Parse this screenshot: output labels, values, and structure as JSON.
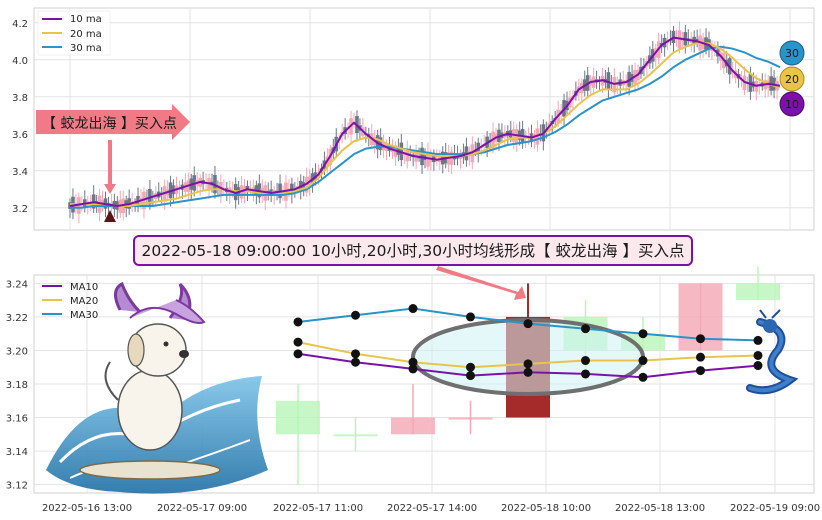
{
  "colors": {
    "ma10": "#7b12a8",
    "ma20": "#e8c44a",
    "ma30": "#2a93c8",
    "candle_up": "#f4a7b5",
    "candle_down": "#6b7788",
    "highlight_candle": "#a52a2a",
    "callout_fill": "#f07a86",
    "banner_fill": "#fbe9ee",
    "banner_border": "#7b12a8"
  },
  "callout": {
    "buy_label": "【 蛟龙出海 】买入点"
  },
  "banner": {
    "text": "2022-05-18 09:00:00 10小时,20小时,30小时均线形成【 蛟龙出海 】买入点"
  },
  "badges": {
    "ma30": "30",
    "ma20": "20",
    "ma10": "10"
  },
  "chart_data": [
    {
      "type": "candlestick",
      "legend": [
        "10 ma",
        "20 ma",
        "30 ma"
      ],
      "legend_position": "top-left",
      "ylim": [
        3.08,
        4.28
      ],
      "yticks": [
        "3.2",
        "3.4",
        "3.6",
        "3.8",
        "4.0",
        "4.2"
      ],
      "grid": true,
      "ma10": [
        3.21,
        3.22,
        3.23,
        3.22,
        3.21,
        3.22,
        3.24,
        3.26,
        3.28,
        3.3,
        3.32,
        3.34,
        3.33,
        3.3,
        3.28,
        3.3,
        3.29,
        3.28,
        3.29,
        3.3,
        3.33,
        3.38,
        3.48,
        3.6,
        3.66,
        3.6,
        3.55,
        3.52,
        3.5,
        3.48,
        3.47,
        3.46,
        3.47,
        3.48,
        3.5,
        3.54,
        3.58,
        3.6,
        3.59,
        3.58,
        3.6,
        3.68,
        3.75,
        3.84,
        3.88,
        3.89,
        3.87,
        3.88,
        3.92,
        4.0,
        4.08,
        4.12,
        4.11,
        4.1,
        4.08,
        4.02,
        3.94,
        3.88,
        3.86,
        3.87,
        3.86
      ],
      "ma20": [
        3.22,
        3.22,
        3.22,
        3.22,
        3.21,
        3.21,
        3.22,
        3.23,
        3.24,
        3.25,
        3.27,
        3.29,
        3.3,
        3.3,
        3.29,
        3.29,
        3.28,
        3.28,
        3.28,
        3.29,
        3.31,
        3.36,
        3.44,
        3.51,
        3.56,
        3.58,
        3.57,
        3.54,
        3.52,
        3.5,
        3.49,
        3.48,
        3.48,
        3.48,
        3.49,
        3.51,
        3.54,
        3.57,
        3.58,
        3.58,
        3.6,
        3.64,
        3.7,
        3.76,
        3.81,
        3.84,
        3.84,
        3.84,
        3.87,
        3.92,
        3.98,
        4.04,
        4.07,
        4.09,
        4.09,
        4.06,
        4.01,
        3.95,
        3.9,
        3.87,
        3.85
      ],
      "ma30": [
        3.2,
        3.2,
        3.21,
        3.21,
        3.21,
        3.21,
        3.21,
        3.21,
        3.22,
        3.23,
        3.24,
        3.25,
        3.26,
        3.27,
        3.27,
        3.27,
        3.27,
        3.27,
        3.27,
        3.28,
        3.3,
        3.34,
        3.39,
        3.44,
        3.49,
        3.52,
        3.53,
        3.53,
        3.52,
        3.51,
        3.5,
        3.49,
        3.49,
        3.49,
        3.49,
        3.5,
        3.52,
        3.54,
        3.55,
        3.56,
        3.58,
        3.61,
        3.65,
        3.7,
        3.74,
        3.78,
        3.8,
        3.82,
        3.84,
        3.87,
        3.91,
        3.96,
        4.0,
        4.03,
        4.06,
        4.07,
        4.06,
        4.04,
        4.01,
        3.99,
        3.96
      ]
    },
    {
      "type": "candlestick",
      "legend": [
        "MA10",
        "MA20",
        "MA30"
      ],
      "legend_position": "top-left",
      "ylim": [
        3.115,
        3.245
      ],
      "yticks": [
        "3.12",
        "3.14",
        "3.16",
        "3.18",
        "3.20",
        "3.22",
        "3.24"
      ],
      "xticks": [
        "2022-05-16 13:00",
        "2022-05-17 09:00",
        "2022-05-17 11:00",
        "2022-05-17 14:00",
        "2022-05-18 10:00",
        "2022-05-18 13:00",
        "2022-05-19 09:00"
      ],
      "grid": true,
      "candles": [
        {
          "o": 3.15,
          "c": 3.17,
          "h": 3.18,
          "l": 3.12,
          "up": false
        },
        {
          "o": 3.15,
          "c": 3.15,
          "h": 3.16,
          "l": 3.14,
          "up": false
        },
        {
          "o": 3.15,
          "c": 3.16,
          "h": 3.18,
          "l": 3.15,
          "up": true
        },
        {
          "o": 3.16,
          "c": 3.16,
          "h": 3.17,
          "l": 3.15,
          "up": true
        },
        {
          "o": 3.22,
          "c": 3.16,
          "h": 3.24,
          "l": 3.16,
          "up": false,
          "highlight": true
        },
        {
          "o": 3.2,
          "c": 3.22,
          "h": 3.23,
          "l": 3.19,
          "up": false
        },
        {
          "o": 3.2,
          "c": 3.21,
          "h": 3.22,
          "l": 3.19,
          "up": false
        },
        {
          "o": 3.2,
          "c": 3.24,
          "h": 3.24,
          "l": 3.2,
          "up": true
        },
        {
          "o": 3.23,
          "c": 3.24,
          "h": 3.25,
          "l": 3.23,
          "up": false
        }
      ],
      "ma10": [
        3.198,
        3.193,
        3.189,
        3.185,
        3.187,
        3.186,
        3.184,
        3.188,
        3.191
      ],
      "ma20": [
        3.205,
        3.198,
        3.193,
        3.19,
        3.192,
        3.194,
        3.194,
        3.196,
        3.197
      ],
      "ma30": [
        3.217,
        3.221,
        3.225,
        3.22,
        3.216,
        3.213,
        3.21,
        3.207,
        3.206
      ]
    }
  ]
}
